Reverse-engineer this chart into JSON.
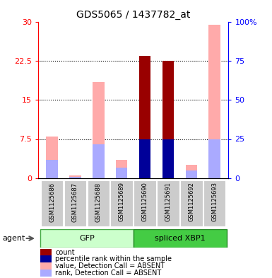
{
  "title": "GDS5065 / 1437782_at",
  "samples": [
    "GSM1125686",
    "GSM1125687",
    "GSM1125688",
    "GSM1125689",
    "GSM1125690",
    "GSM1125691",
    "GSM1125692",
    "GSM1125693"
  ],
  "count_values": [
    0,
    0,
    0,
    0,
    23.5,
    22.5,
    0,
    0
  ],
  "percentile_values": [
    0,
    0,
    0,
    0,
    7.5,
    7.5,
    0,
    0
  ],
  "absent_value_values": [
    8.0,
    0.5,
    18.5,
    3.5,
    0,
    0,
    2.5,
    29.5
  ],
  "absent_rank_values": [
    3.5,
    0.2,
    6.5,
    2.0,
    0,
    0,
    1.5,
    7.5
  ],
  "count_color": "#990000",
  "percentile_color": "#000099",
  "absent_value_color": "#ffaaaa",
  "absent_rank_color": "#aaaaff",
  "ylim_left": [
    0,
    30
  ],
  "ylim_right": [
    0,
    100
  ],
  "yticks_left": [
    0,
    7.5,
    15,
    22.5,
    30
  ],
  "ytick_labels_left": [
    "0",
    "7.5",
    "15",
    "22.5",
    "30"
  ],
  "yticks_right": [
    0,
    25,
    50,
    75,
    100
  ],
  "ytick_labels_right": [
    "0",
    "25",
    "50",
    "75",
    "100%"
  ],
  "agent_label": "agent",
  "gfp_label": "GFP",
  "xbp1_label": "spliced XBP1",
  "legend_items": [
    {
      "label": "count",
      "color": "#990000"
    },
    {
      "label": "percentile rank within the sample",
      "color": "#000099"
    },
    {
      "label": "value, Detection Call = ABSENT",
      "color": "#ffaaaa"
    },
    {
      "label": "rank, Detection Call = ABSENT",
      "color": "#aaaaff"
    }
  ],
  "bar_width": 0.5,
  "fig_width": 3.85,
  "fig_height": 3.93,
  "dpi": 100
}
